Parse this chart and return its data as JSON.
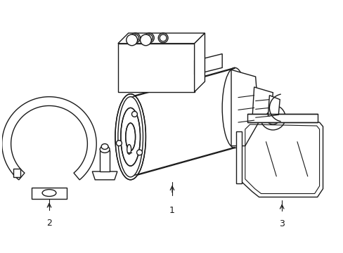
{
  "bg_color": "#ffffff",
  "line_color": "#1a1a1a",
  "line_width": 1.0,
  "fig_width": 4.89,
  "fig_height": 3.6,
  "dpi": 100
}
